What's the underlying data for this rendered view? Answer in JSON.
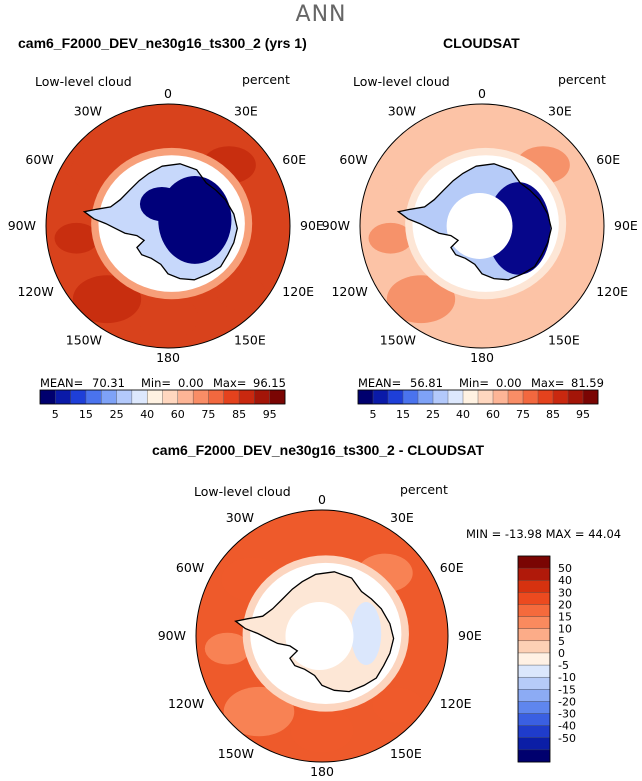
{
  "figure": {
    "suptitle": "ANN",
    "panels": [
      {
        "title": "cam6_F2000_DEV_ne30g16_ts300_2 (yrs 1)",
        "left_label": "Low-level cloud",
        "right_label": "percent",
        "stats": {
          "mean_label": "MEAN=",
          "mean": "70.31",
          "min_label": "Min=",
          "min": "0.00",
          "max_label": "Max=",
          "max": "96.15"
        }
      },
      {
        "title": "CLOUDSAT",
        "left_label": "Low-level cloud",
        "right_label": "percent",
        "stats": {
          "mean_label": "MEAN=",
          "mean": "56.81",
          "min_label": "Min=",
          "min": "0.00",
          "max_label": "Max=",
          "max": "81.59"
        }
      },
      {
        "title": "cam6_F2000_DEV_ne30g16_ts300_2 - CLOUDSAT",
        "left_label": "Low-level cloud",
        "right_label": "percent",
        "minmax": "MIN = -13.98 MAX =  44.04"
      }
    ],
    "lon_labels": [
      "0",
      "30E",
      "60E",
      "90E",
      "120E",
      "150E",
      "180",
      "150W",
      "120W",
      "90W",
      "60W",
      "30W"
    ],
    "colorbar_abs": {
      "labels": [
        "5",
        "15",
        "25",
        "40",
        "60",
        "75",
        "85",
        "95"
      ],
      "colors": [
        "#00006e",
        "#0a1aa8",
        "#1e3fd8",
        "#4a73ee",
        "#7ea2f7",
        "#b3c9fb",
        "#dde8fd",
        "#fff2e2",
        "#ffd7bf",
        "#fdb596",
        "#f98d66",
        "#f2683f",
        "#e4421d",
        "#c9280f",
        "#a31508",
        "#7a0503"
      ]
    },
    "colorbar_diff": {
      "labels": [
        "50",
        "40",
        "30",
        "20",
        "15",
        "10",
        "5",
        "0",
        "-5",
        "-10",
        "-15",
        "-20",
        "-30",
        "-40",
        "-50"
      ],
      "colors": [
        "#7a0503",
        "#b0190a",
        "#d6320f",
        "#ec4a1f",
        "#f56a3c",
        "#fa8a5e",
        "#fcac88",
        "#fdd0b5",
        "#fff1e4",
        "#dbe7fc",
        "#b6cbf8",
        "#8cabf4",
        "#5f86ee",
        "#3a5fe2",
        "#1f3ccb",
        "#0b1ea6",
        "#00006e"
      ]
    }
  }
}
